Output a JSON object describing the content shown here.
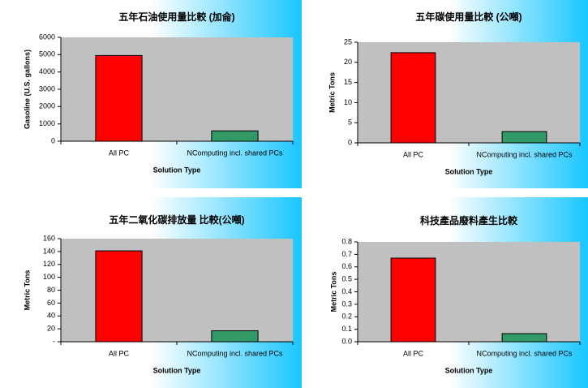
{
  "chart_data": [
    {
      "type": "bar",
      "title": "五年石油使用量比較 (加侖)",
      "x_label": "Solution Type",
      "y_label": "Gasoline (U.S. gallons)",
      "categories": [
        "All PC",
        "NComputing incl. shared PCs"
      ],
      "values": [
        4950,
        600
      ],
      "colors": [
        "#ff0000",
        "#339966"
      ],
      "ylim": [
        0,
        6000
      ],
      "yticks": [
        0,
        1000,
        2000,
        3000,
        4000,
        5000,
        6000
      ]
    },
    {
      "type": "bar",
      "title": "五年碳使用量比較 (公噸)",
      "x_label": "Solution Type",
      "y_label": "Metric Tons",
      "categories": [
        "All PC",
        "NComputing incl. shared PCs"
      ],
      "values": [
        22.4,
        2.8
      ],
      "colors": [
        "#ff0000",
        "#339966"
      ],
      "ylim": [
        0,
        25
      ],
      "yticks": [
        0,
        5,
        10,
        15,
        20,
        25
      ]
    },
    {
      "type": "bar",
      "title": "五年二氧化碳排放量 比較(公噸)",
      "x_label": "Solution Type",
      "y_label": "Metric Tons",
      "categories": [
        "All PC",
        "NComputing incl. shared PCs"
      ],
      "values": [
        141,
        17
      ],
      "colors": [
        "#ff0000",
        "#339966"
      ],
      "ylim": [
        0,
        160
      ],
      "yticks": [
        {
          "value": 0,
          "label": "-"
        },
        20,
        40,
        60,
        80,
        100,
        120,
        140,
        160
      ]
    },
    {
      "type": "bar",
      "title": "科技產品廢料產生比較",
      "x_label": "Solution Type",
      "y_label": "Metric Tons",
      "categories": [
        "All PC",
        "NComputing incl. shared PCs"
      ],
      "values": [
        0.67,
        0.065
      ],
      "colors": [
        "#ff0000",
        "#339966"
      ],
      "ylim": [
        0,
        0.8
      ],
      "yticks": [
        {
          "value": 0,
          "label": "0.0"
        },
        0.1,
        0.2,
        0.3,
        0.4,
        0.5,
        0.6,
        0.7,
        0.8
      ]
    }
  ]
}
